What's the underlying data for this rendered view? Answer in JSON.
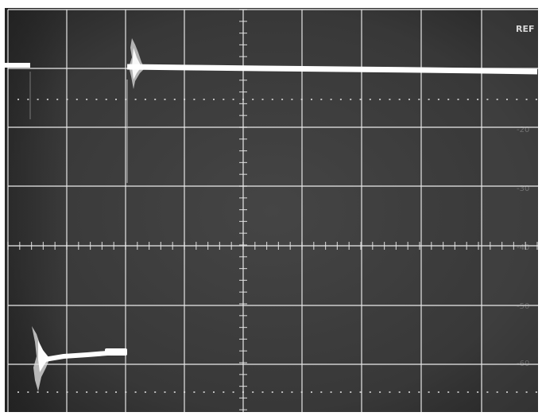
{
  "screen": {
    "ref_label": "REF",
    "right_scale_labels": [
      "-10",
      "-20",
      "-30",
      "-40",
      "-50",
      "-60"
    ]
  },
  "colors": {
    "screen": "#3b3b3b",
    "screen_dark": "#2a2a2a",
    "grid": "#e8e8e8",
    "trace": "#ffffff",
    "label": "#d8d8d8",
    "border": "#ffffff"
  },
  "trace": {
    "top_level_db": -10,
    "lower_level_db": -68
  }
}
